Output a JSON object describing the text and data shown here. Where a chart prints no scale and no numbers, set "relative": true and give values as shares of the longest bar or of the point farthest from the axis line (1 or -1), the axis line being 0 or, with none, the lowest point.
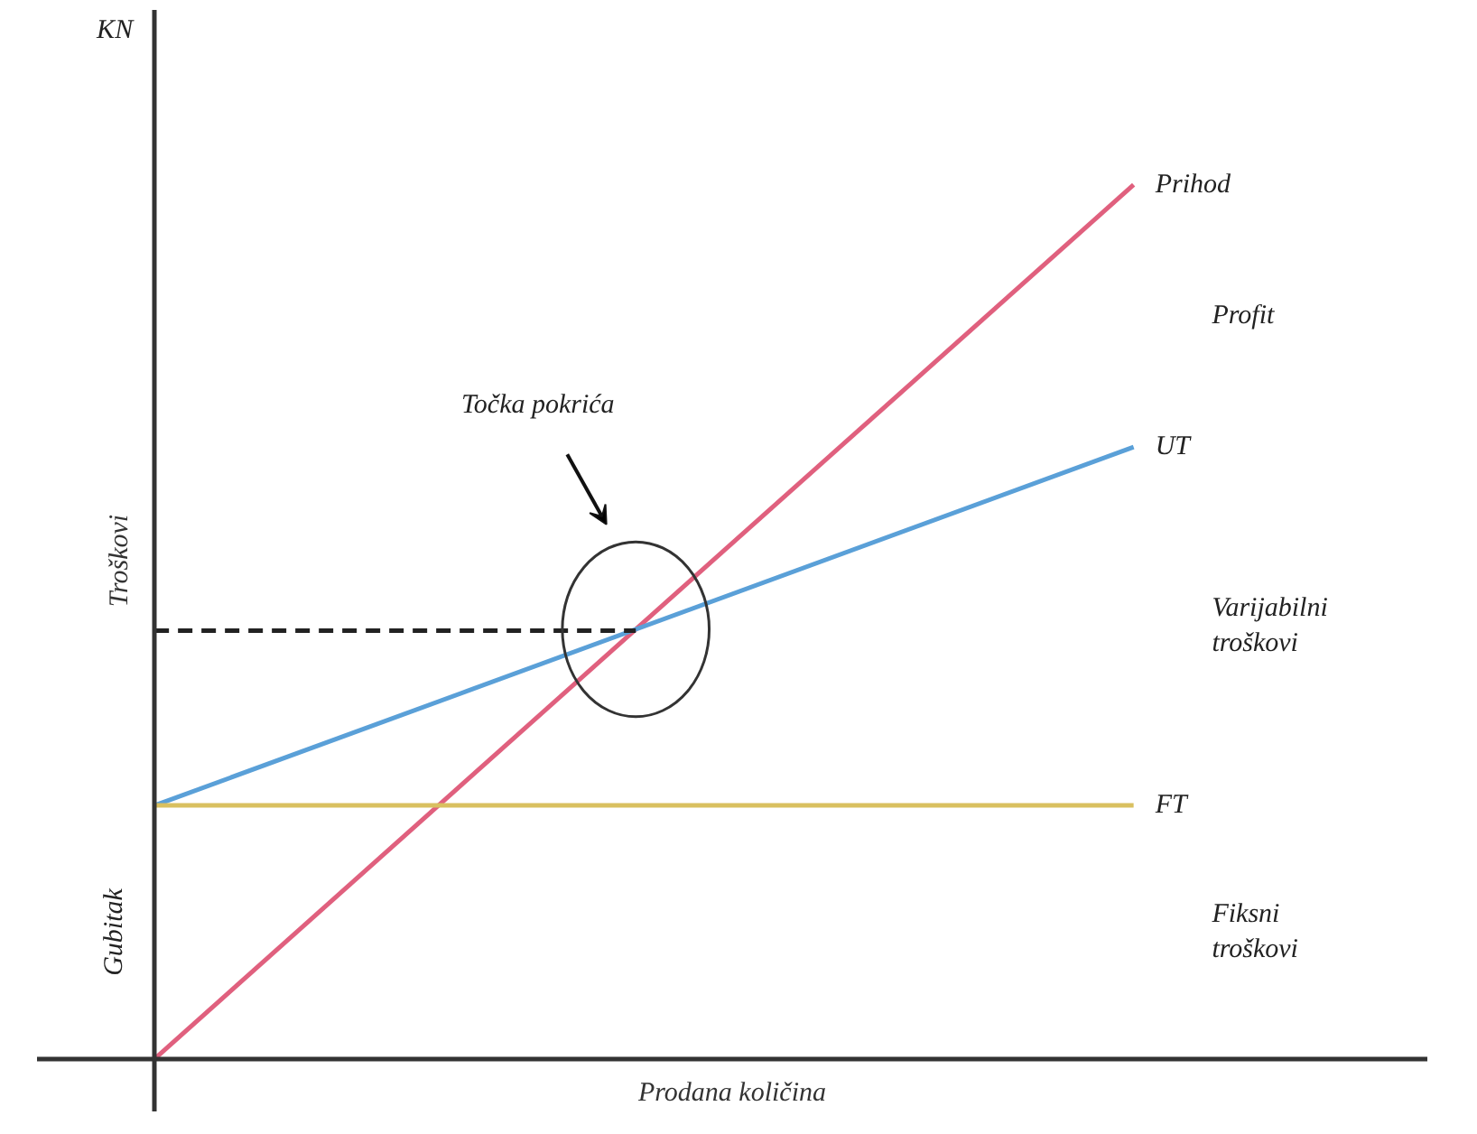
{
  "chart_data": {
    "type": "line",
    "relative": true,
    "tick_labels": false,
    "grid": false,
    "xlabel": "Prodana količina",
    "ylabel": "Troškovi",
    "categories": [
      null,
      null
    ],
    "series": [
      {
        "name": "Prihod",
        "color": "#e0607e",
        "values": [
          0,
          1
        ]
      },
      {
        "name": "UT",
        "color": "#5aa0d8",
        "values": [
          0.29,
          0.7
        ]
      },
      {
        "name": "FT",
        "color": "#d9c060",
        "values": [
          0.29,
          0.29
        ]
      }
    ],
    "ref_lines": [
      {
        "axis": "y",
        "value": 0.49,
        "color": "#222222",
        "line_style": "dashed"
      }
    ],
    "annotations": [
      "KN",
      "Točka pokrića",
      "Profit",
      "Varijabilni troškovi",
      "Fiksni troškovi",
      "Gubitak"
    ]
  }
}
